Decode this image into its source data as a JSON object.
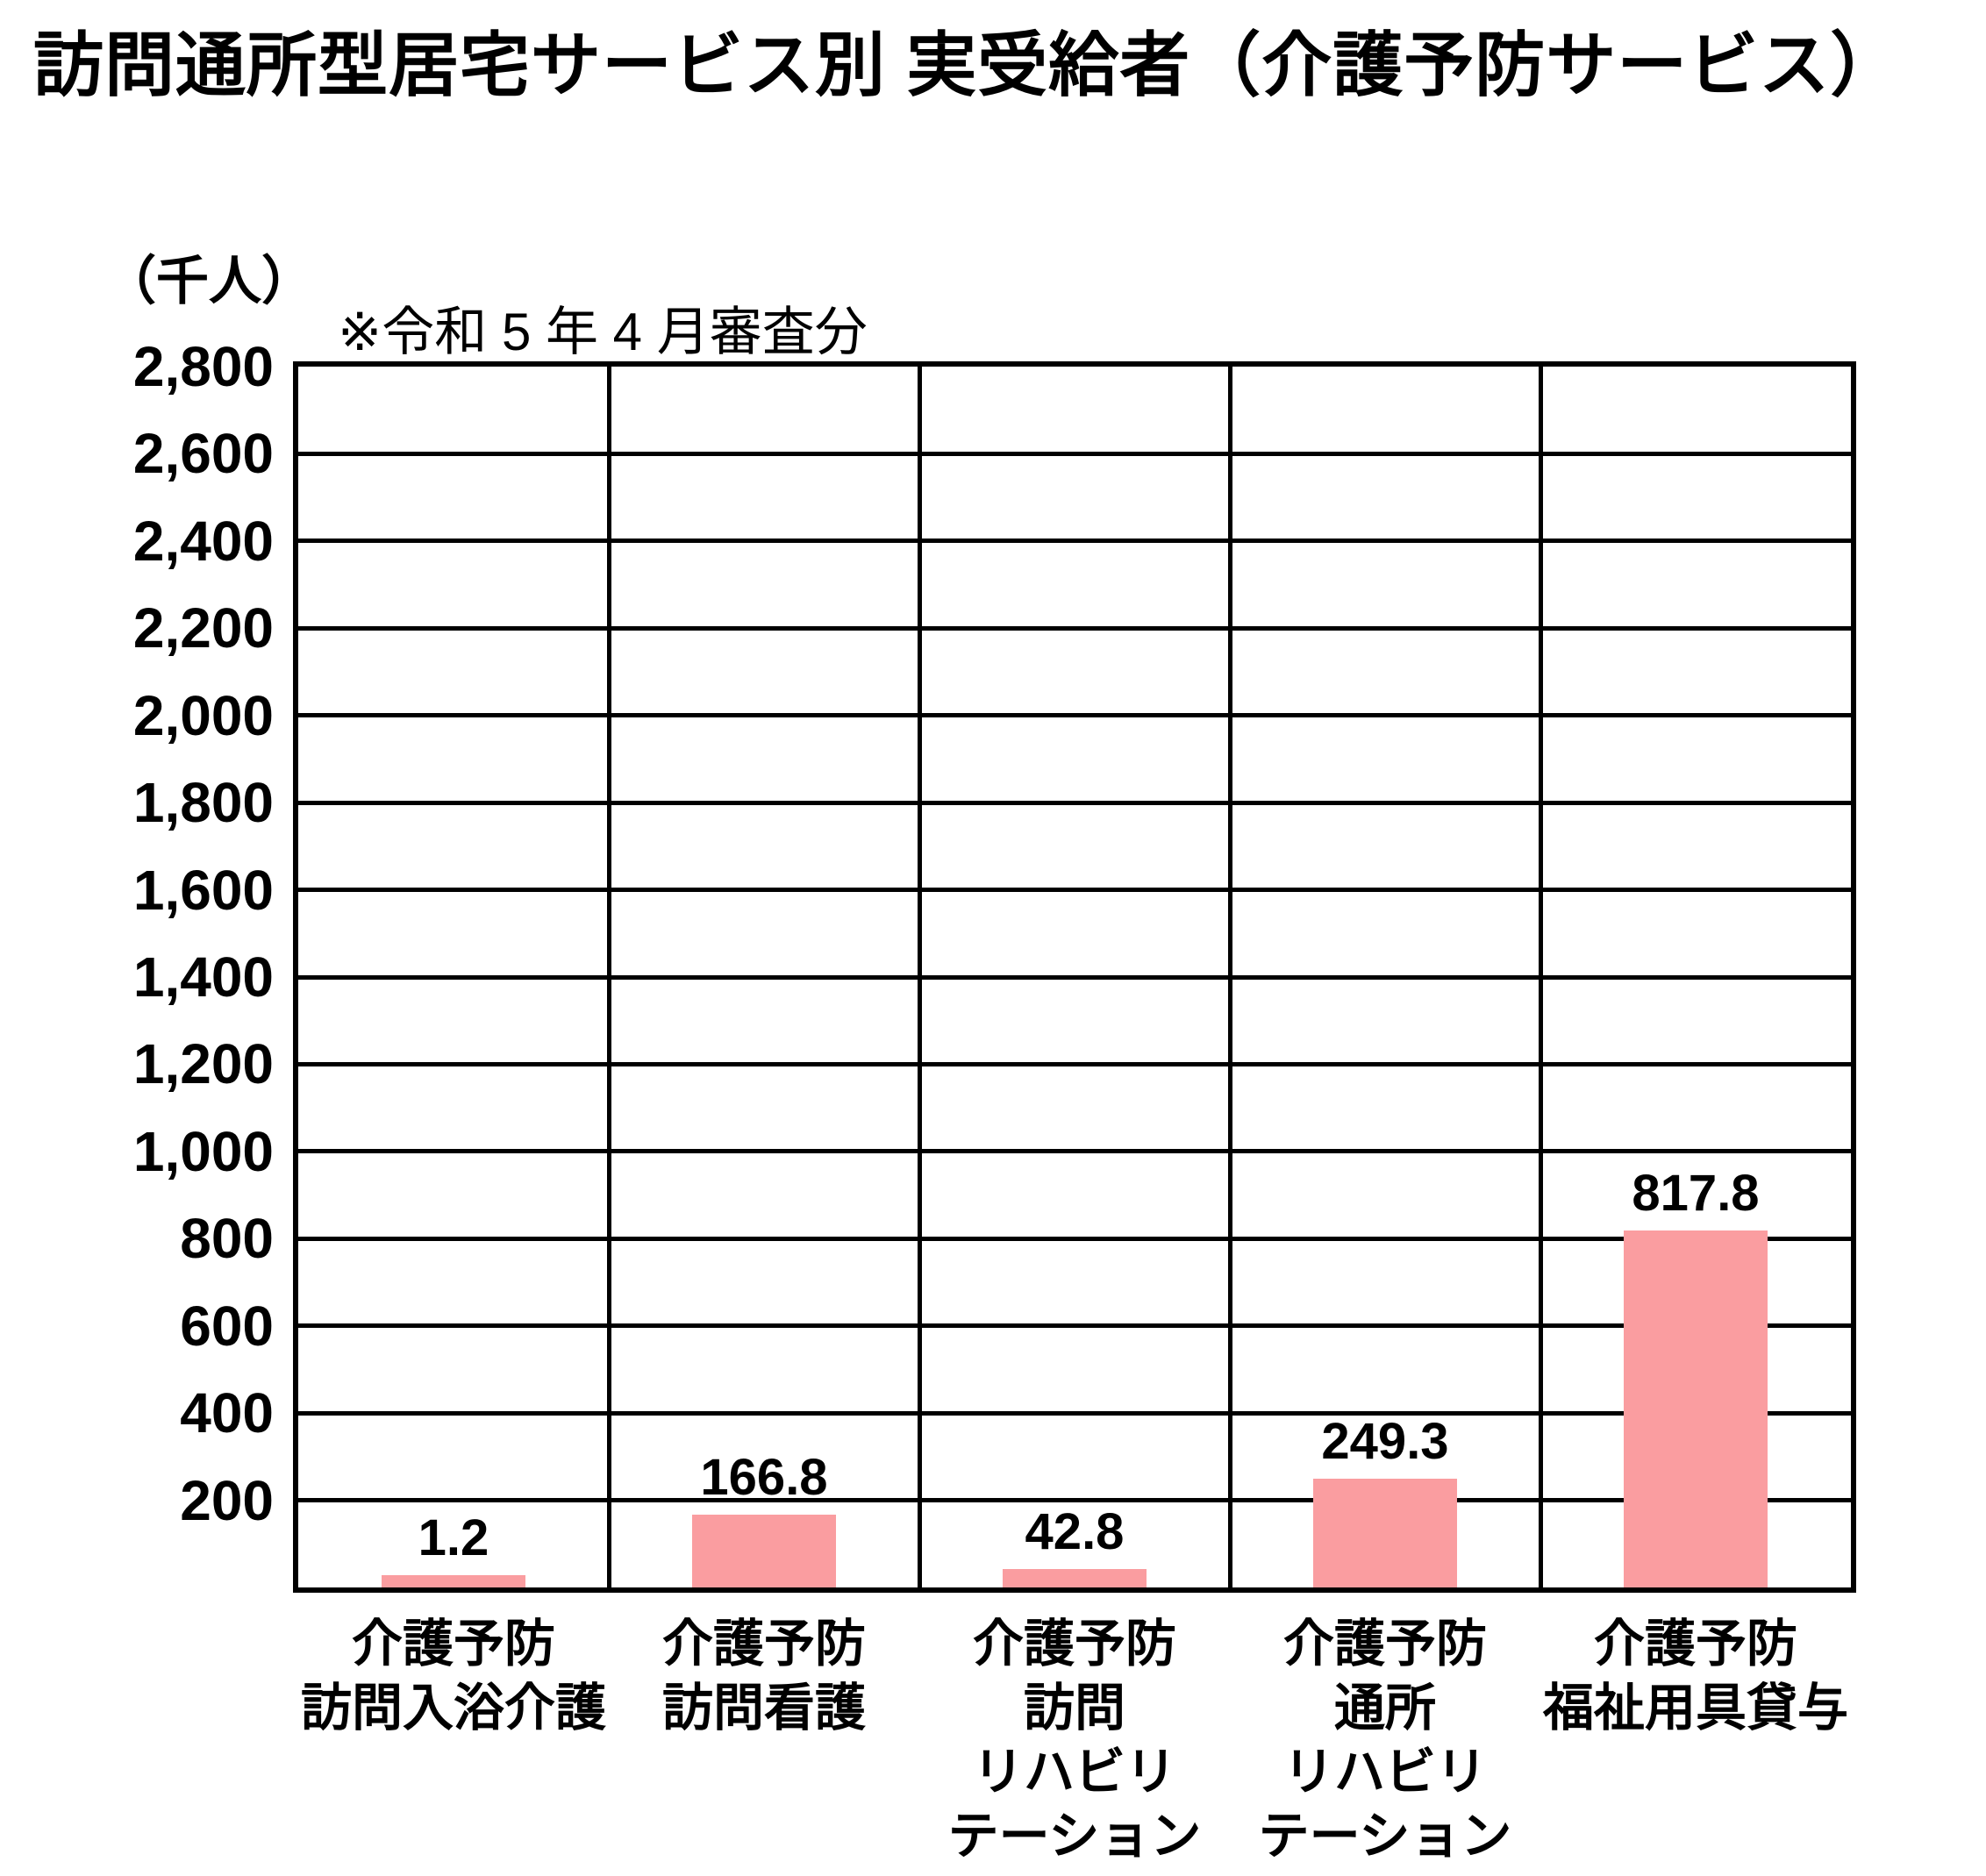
{
  "chart_data": {
    "type": "bar",
    "title": "訪問通所型居宅サービス別 実受給者（介護予防サービス）",
    "note": "※令和 5 年 4 月審査分",
    "ylabel": "（千人）",
    "xlabel": "",
    "ylim": [
      0,
      2800
    ],
    "ytick_step": 200,
    "ytick_labels": [
      "200",
      "400",
      "600",
      "800",
      "1,000",
      "1,200",
      "1,400",
      "1,600",
      "1,800",
      "2,000",
      "2,200",
      "2,400",
      "2,600",
      "2,800"
    ],
    "grid": true,
    "legend_position": "none",
    "bar_color": "#FA9DA0",
    "line_color": "#000000",
    "categories": [
      [
        "介護予防",
        "訪問入浴介護"
      ],
      [
        "介護予防",
        "訪問看護"
      ],
      [
        "介護予防",
        "訪問",
        "リハビリ",
        "テーション"
      ],
      [
        "介護予防",
        "通所",
        "リハビリ",
        "テーション"
      ],
      [
        "介護予防",
        "福祉用具貸与"
      ]
    ],
    "values": [
      1.2,
      166.8,
      42.8,
      249.3,
      817.8
    ],
    "value_labels": [
      "1.2",
      "166.8",
      "42.8",
      "249.3",
      "817.8"
    ]
  }
}
